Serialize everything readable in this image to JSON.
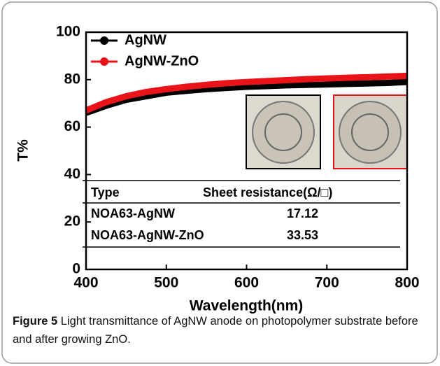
{
  "chart_data": {
    "type": "line",
    "x": [
      400,
      425,
      450,
      475,
      500,
      525,
      550,
      575,
      600,
      625,
      650,
      675,
      700,
      725,
      750,
      775,
      800
    ],
    "series": [
      {
        "name": "AgNW",
        "color": "#000000",
        "values": [
          66,
          69,
          71.5,
          73,
          74.5,
          75.3,
          76,
          76.5,
          77,
          77.3,
          77.6,
          77.8,
          78,
          78.2,
          78.4,
          78.6,
          79
        ]
      },
      {
        "name": "AgNW-ZnO",
        "color": "#e8141a",
        "values": [
          67,
          70.5,
          73,
          74.8,
          76,
          77,
          77.8,
          78.5,
          79,
          79.4,
          79.8,
          80.2,
          80.5,
          80.8,
          81,
          81.3,
          81.6
        ]
      }
    ],
    "xlabel": "Wavelength(nm)",
    "ylabel": "T%",
    "xlim": [
      400,
      800
    ],
    "xticks": [
      400,
      500,
      600,
      700,
      800
    ],
    "ylim": [
      0,
      100
    ],
    "yticks": [
      0,
      20,
      40,
      60,
      80,
      100
    ],
    "legend": "top-left",
    "table": {
      "columns": [
        "Type",
        "Sheet resistance(Ω/□)"
      ],
      "rows": [
        [
          "NOA63-AgNW",
          "17.12"
        ],
        [
          "NOA63-AgNW-ZnO",
          "33.53"
        ]
      ]
    }
  },
  "caption": {
    "label": "Figure 5",
    "text": "Light transmittance of AgNW anode on photopolymer substrate before and after growing ZnO."
  }
}
